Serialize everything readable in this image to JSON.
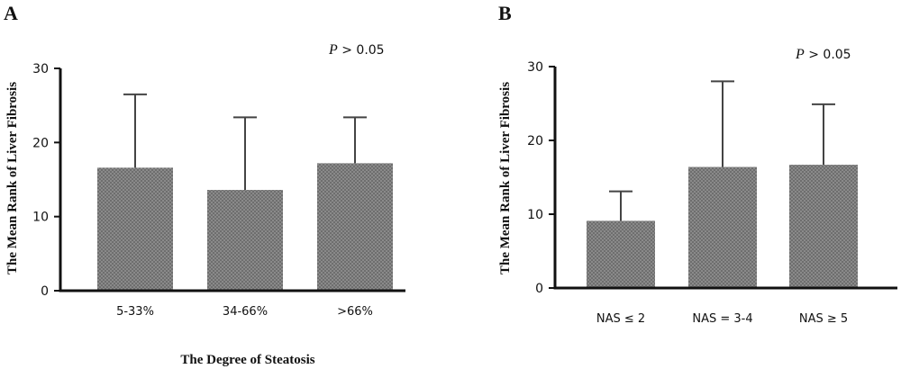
{
  "chart_data": [
    {
      "type": "bar",
      "panel": "A",
      "ylabel": "The Mean Rank of Liver Fibrosis",
      "xlabel": "The Degree of Steatosis",
      "annotation_italic": "P",
      "annotation_rest": " > 0.05",
      "categories": [
        "5-33%",
        "34-66%",
        ">66%"
      ],
      "values": [
        16.6,
        13.6,
        17.2
      ],
      "error_upper": [
        26.5,
        23.4,
        23.4
      ],
      "ylim": [
        0,
        30
      ],
      "yticks": [
        0,
        10,
        20,
        30
      ],
      "bar_color": "#7d7d7d"
    },
    {
      "type": "bar",
      "panel": "B",
      "ylabel": "The Mean Rank of Liver Fibrosis",
      "xlabel": "",
      "annotation_italic": "P",
      "annotation_rest": " > 0.05",
      "categories": [
        "NAS  ≤ 2",
        "NAS = 3-4",
        "NAS  ≥ 5"
      ],
      "values": [
        9.1,
        16.4,
        16.7
      ],
      "error_upper": [
        13.1,
        28.0,
        24.9
      ],
      "ylim": [
        0,
        30
      ],
      "yticks": [
        0,
        10,
        20,
        30
      ],
      "bar_color": "#7d7d7d"
    }
  ]
}
